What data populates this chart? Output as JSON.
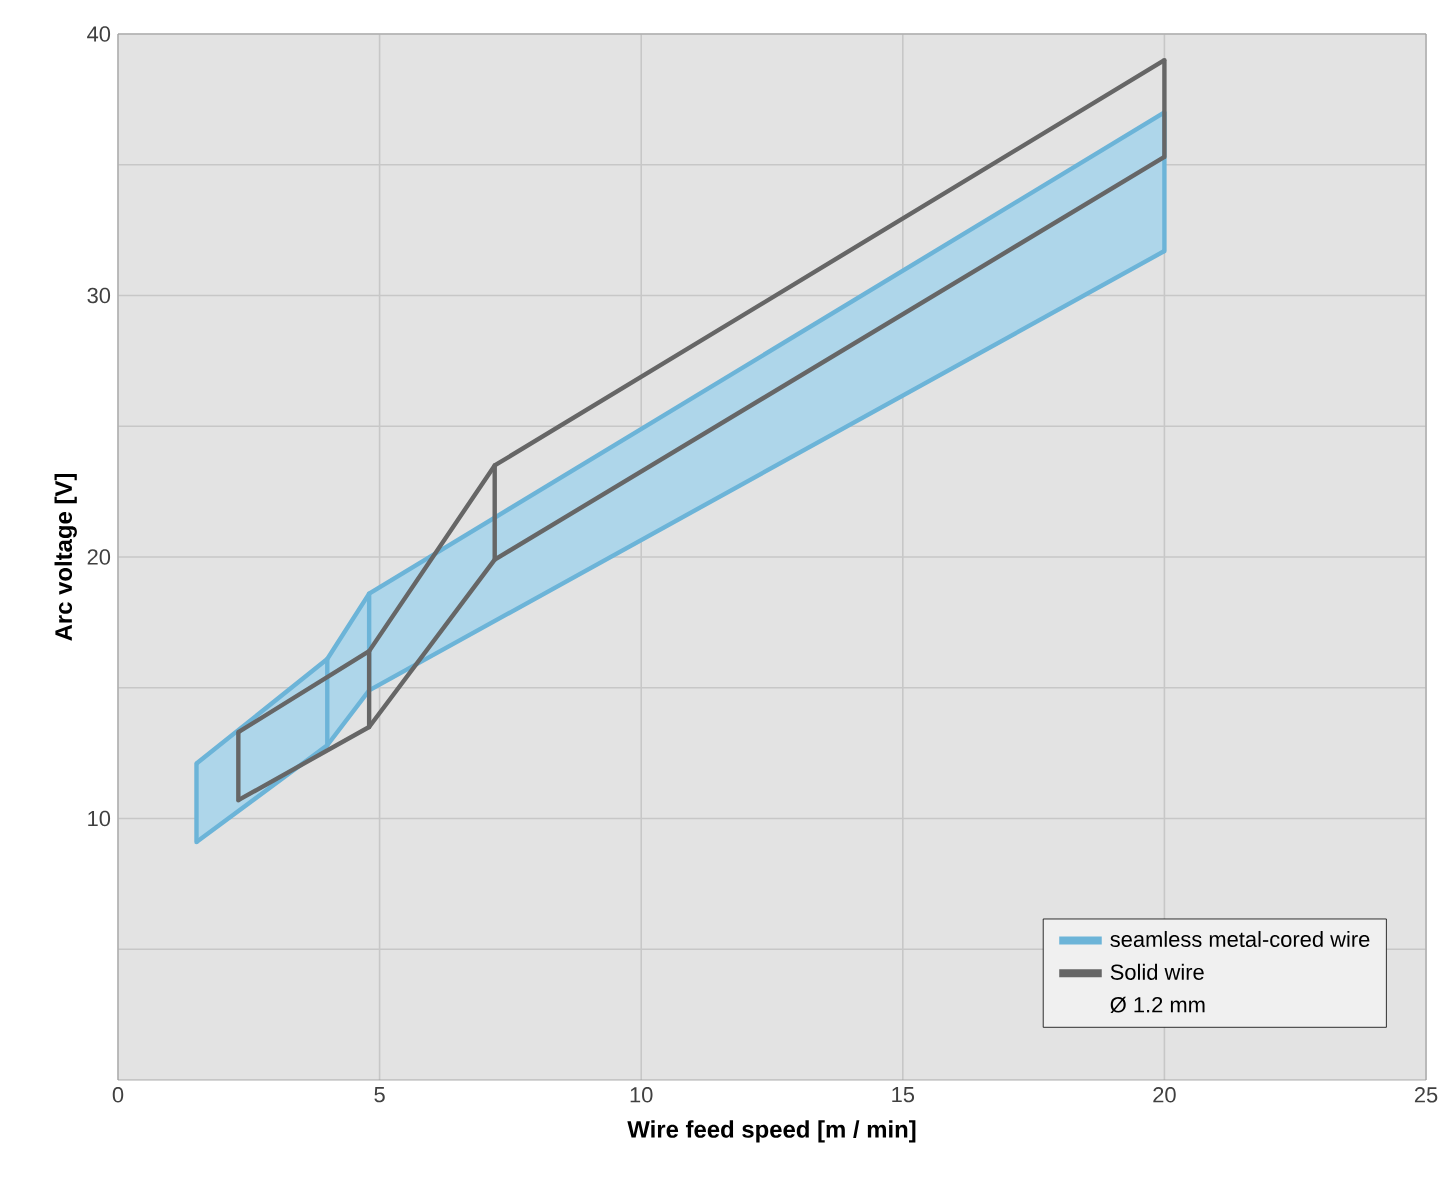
{
  "chart_data": {
    "type": "line",
    "xlabel": "Wire feed speed [m / min]",
    "ylabel": "Arc voltage [V]",
    "xlim": [
      0,
      25
    ],
    "xticks": [
      0,
      5,
      10,
      15,
      20,
      25
    ],
    "ylim": [
      0,
      40
    ],
    "yticks": [
      {
        "value": 5,
        "label": null
      },
      10,
      {
        "value": 15,
        "label": null
      },
      20,
      {
        "value": 25,
        "label": null
      },
      30,
      {
        "value": 35,
        "label": null
      },
      40
    ],
    "grid": true,
    "legend": "bottom right",
    "annotations": [
      "Ø 1.2 mm"
    ],
    "series": [
      {
        "name": "seamless metal-cored wire",
        "type": "area",
        "color": "#6cb4d8",
        "x": [
          1.5,
          4,
          4.8,
          20
        ],
        "values": [
          12.1,
          16.1,
          18.6,
          37.0
        ],
        "errors": [
          [
            9.1,
            12.1
          ],
          [
            12.8,
            16.1
          ],
          [
            14.9,
            18.6
          ],
          [
            31.7,
            37.0
          ]
        ]
      },
      {
        "color": "#6cb4d8",
        "x": [
          1.5,
          4,
          4.8,
          20
        ],
        "values": [
          9.1,
          12.8,
          14.9,
          31.7
        ]
      },
      {
        "name": "Solid wire",
        "color": "#666666",
        "x": [
          2.3,
          4.8,
          7.2,
          20
        ],
        "values": [
          13.3,
          16.4,
          23.5,
          39.0
        ],
        "errors": [
          [
            10.7,
            13.3
          ],
          [
            13.5,
            16.4
          ],
          [
            19.9,
            23.5
          ],
          [
            35.3,
            39.0
          ]
        ]
      },
      {
        "color": "#666666",
        "x": [
          2.3,
          4.8,
          7.2,
          20
        ],
        "values": [
          10.7,
          13.5,
          19.9,
          35.3
        ]
      }
    ]
  }
}
